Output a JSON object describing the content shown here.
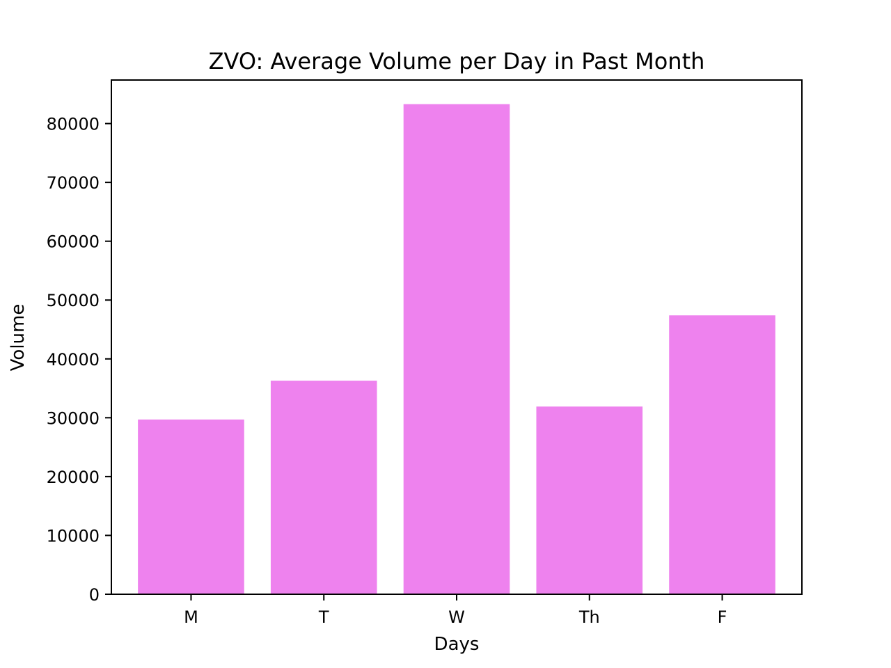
{
  "chart_data": {
    "type": "bar",
    "title": "ZVO: Average Volume per Day in Past Month",
    "xlabel": "Days",
    "ylabel": "Volume",
    "categories": [
      "M",
      "T",
      "W",
      "Th",
      "F"
    ],
    "values": [
      29700,
      36300,
      83300,
      31900,
      47400
    ],
    "ylim": [
      0,
      87400
    ],
    "yticks": [
      0,
      10000,
      20000,
      30000,
      40000,
      50000,
      60000,
      70000,
      80000
    ],
    "bar_color": "#ee82ee",
    "grid": false,
    "legend": "none"
  }
}
